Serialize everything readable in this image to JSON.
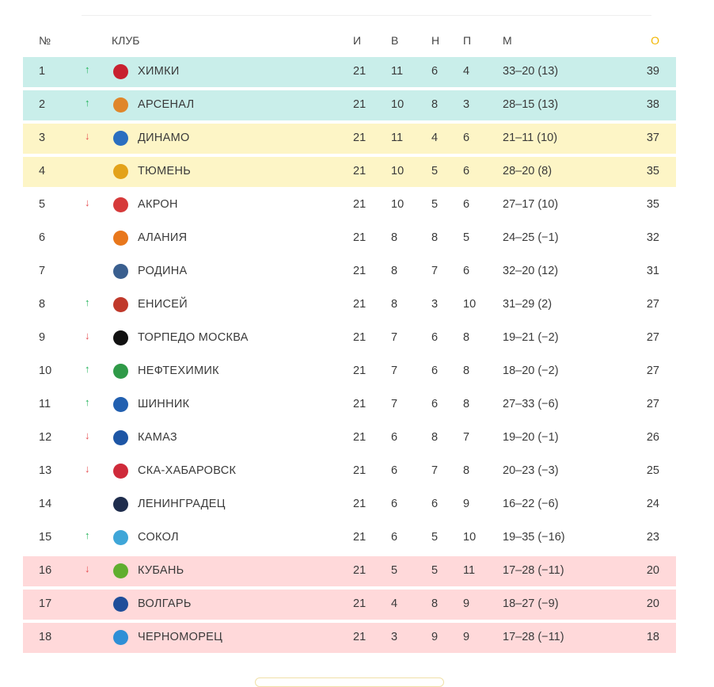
{
  "header": {
    "pos": "№",
    "club": "КЛУБ",
    "gp": "И",
    "w": "В",
    "d": "Н",
    "l": "П",
    "goals": "М",
    "pts": "О"
  },
  "colors": {
    "green_zone": "#c9eeea",
    "yellow_zone": "#fdf5c6",
    "red_zone": "#ffd9da",
    "arrow_up": "#23b35a",
    "arrow_down": "#e54b4f",
    "points_header": "#f2b600"
  },
  "rows": [
    {
      "pos": "1",
      "trend": "up",
      "arrow": "↑",
      "club": "ХИМКИ",
      "gp": "21",
      "w": "11",
      "d": "6",
      "l": "4",
      "goals": "33–20 (13)",
      "pts": "39",
      "zone": "green",
      "logo_color": "#c8202f",
      "logo_icon": "khimki-logo"
    },
    {
      "pos": "2",
      "trend": "up",
      "arrow": "↑",
      "club": "АРСЕНАЛ",
      "gp": "21",
      "w": "10",
      "d": "8",
      "l": "3",
      "goals": "28–15 (13)",
      "pts": "38",
      "zone": "green",
      "logo_color": "#e0862a",
      "logo_icon": "arsenal-logo"
    },
    {
      "pos": "3",
      "trend": "down",
      "arrow": "↓",
      "club": "ДИНАМО",
      "gp": "21",
      "w": "11",
      "d": "4",
      "l": "6",
      "goals": "21–11 (10)",
      "pts": "37",
      "zone": "yellow",
      "logo_color": "#2a6fc0",
      "logo_icon": "dinamo-logo"
    },
    {
      "pos": "4",
      "trend": "none",
      "arrow": "",
      "club": "ТЮМЕНЬ",
      "gp": "21",
      "w": "10",
      "d": "5",
      "l": "6",
      "goals": "28–20 (8)",
      "pts": "35",
      "zone": "yellow",
      "logo_color": "#e3a21a",
      "logo_icon": "tyumen-logo"
    },
    {
      "pos": "5",
      "trend": "down",
      "arrow": "↓",
      "club": "АКРОН",
      "gp": "21",
      "w": "10",
      "d": "5",
      "l": "6",
      "goals": "27–17 (10)",
      "pts": "35",
      "zone": "none",
      "logo_color": "#d63a3a",
      "logo_icon": "akron-logo"
    },
    {
      "pos": "6",
      "trend": "none",
      "arrow": "",
      "club": "АЛАНИЯ",
      "gp": "21",
      "w": "8",
      "d": "8",
      "l": "5",
      "goals": "24–25 (−1)",
      "pts": "32",
      "zone": "none",
      "logo_color": "#e8771c",
      "logo_icon": "alania-logo"
    },
    {
      "pos": "7",
      "trend": "none",
      "arrow": "",
      "club": "РОДИНА",
      "gp": "21",
      "w": "8",
      "d": "7",
      "l": "6",
      "goals": "32–20 (12)",
      "pts": "31",
      "zone": "none",
      "logo_color": "#3a5f8f",
      "logo_icon": "rodina-logo"
    },
    {
      "pos": "8",
      "trend": "up",
      "arrow": "↑",
      "club": "ЕНИСЕЙ",
      "gp": "21",
      "w": "8",
      "d": "3",
      "l": "10",
      "goals": "31–29 (2)",
      "pts": "27",
      "zone": "none",
      "logo_color": "#c0392b",
      "logo_icon": "yenisey-logo"
    },
    {
      "pos": "9",
      "trend": "down",
      "arrow": "↓",
      "club": "ТОРПЕДО МОСКВА",
      "gp": "21",
      "w": "7",
      "d": "6",
      "l": "8",
      "goals": "19–21 (−2)",
      "pts": "27",
      "zone": "none",
      "logo_color": "#111111",
      "logo_icon": "torpedo-logo"
    },
    {
      "pos": "10",
      "trend": "up",
      "arrow": "↑",
      "club": "НЕФТЕХИМИК",
      "gp": "21",
      "w": "7",
      "d": "6",
      "l": "8",
      "goals": "18–20 (−2)",
      "pts": "27",
      "zone": "none",
      "logo_color": "#2f9a48",
      "logo_icon": "neftekhimik-logo"
    },
    {
      "pos": "11",
      "trend": "up",
      "arrow": "↑",
      "club": "ШИННИК",
      "gp": "21",
      "w": "7",
      "d": "6",
      "l": "8",
      "goals": "27–33 (−6)",
      "pts": "27",
      "zone": "none",
      "logo_color": "#2260b0",
      "logo_icon": "shinnik-logo"
    },
    {
      "pos": "12",
      "trend": "down",
      "arrow": "↓",
      "club": "КАМАЗ",
      "gp": "21",
      "w": "6",
      "d": "8",
      "l": "7",
      "goals": "19–20 (−1)",
      "pts": "26",
      "zone": "none",
      "logo_color": "#1d56a5",
      "logo_icon": "kamaz-logo"
    },
    {
      "pos": "13",
      "trend": "down",
      "arrow": "↓",
      "club": "СКА-ХАБАРОВСК",
      "gp": "21",
      "w": "6",
      "d": "7",
      "l": "8",
      "goals": "20–23 (−3)",
      "pts": "25",
      "zone": "none",
      "logo_color": "#cf2a3a",
      "logo_icon": "ska-logo"
    },
    {
      "pos": "14",
      "trend": "none",
      "arrow": "",
      "club": "ЛЕНИНГРАДЕЦ",
      "gp": "21",
      "w": "6",
      "d": "6",
      "l": "9",
      "goals": "16–22 (−6)",
      "pts": "24",
      "zone": "none",
      "logo_color": "#1f2d4d",
      "logo_icon": "leningradets-logo"
    },
    {
      "pos": "15",
      "trend": "up",
      "arrow": "↑",
      "club": "СОКОЛ",
      "gp": "21",
      "w": "6",
      "d": "5",
      "l": "10",
      "goals": "19–35 (−16)",
      "pts": "23",
      "zone": "none",
      "logo_color": "#3fa6d8",
      "logo_icon": "sokol-logo"
    },
    {
      "pos": "16",
      "trend": "down",
      "arrow": "↓",
      "club": "КУБАНЬ",
      "gp": "21",
      "w": "5",
      "d": "5",
      "l": "11",
      "goals": "17–28 (−11)",
      "pts": "20",
      "zone": "red",
      "logo_color": "#5fae2e",
      "logo_icon": "kuban-logo"
    },
    {
      "pos": "17",
      "trend": "none",
      "arrow": "",
      "club": "ВОЛГАРЬ",
      "gp": "21",
      "w": "4",
      "d": "8",
      "l": "9",
      "goals": "18–27 (−9)",
      "pts": "20",
      "zone": "red",
      "logo_color": "#1f4e9a",
      "logo_icon": "volgar-logo"
    },
    {
      "pos": "18",
      "trend": "none",
      "arrow": "",
      "club": "ЧЕРНОМОРЕЦ",
      "gp": "21",
      "w": "3",
      "d": "9",
      "l": "9",
      "goals": "17–28 (−11)",
      "pts": "18",
      "zone": "red",
      "logo_color": "#2e8fd6",
      "logo_icon": "chernomorets-logo"
    }
  ]
}
